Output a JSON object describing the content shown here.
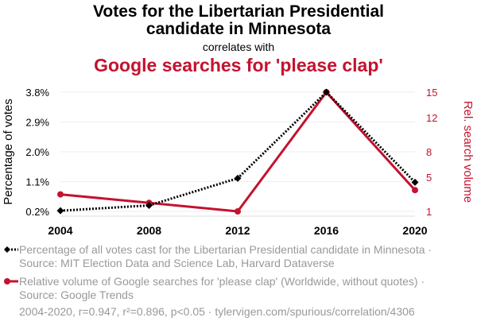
{
  "header": {
    "title_line1": "Votes for the Libertarian Presidential",
    "title_line2": "candidate in Minnesota",
    "connector": "correlates with",
    "title_secondary": "Google searches for 'please clap'"
  },
  "legend": {
    "series1": "Percentage of all votes cast for the Libertarian Presidential candidate in Minnesota · Source: MIT Election Data and Science Lab, Harvard Dataverse",
    "series2": "Relative volume of Google searches for 'please clap' (Worldwide, without quotes) · Source: Google Trends"
  },
  "footer": "2004-2020, r=0.947, r²=0.896, p<0.05 · tylervigen.com/spurious/correlation/4306",
  "colors": {
    "primary": "#000000",
    "secondary": "#c4122f",
    "muted": "#999999",
    "grid": "#eeeeee"
  },
  "chart_data": {
    "type": "line",
    "x": [
      2004,
      2008,
      2012,
      2016,
      2020
    ],
    "xlabel": "",
    "y_left": {
      "label": "Percentage of votes",
      "ticks": [
        "0.2%",
        "1.1%",
        "2.0%",
        "2.9%",
        "3.8%"
      ],
      "tick_values": [
        0.2,
        1.1,
        2.0,
        2.9,
        3.8
      ],
      "ylim": [
        0.2,
        3.8
      ]
    },
    "y_right": {
      "label": "Rel. search volume",
      "ticks": [
        "1",
        "5",
        "8",
        "12",
        "15"
      ],
      "tick_values": [
        1,
        5,
        8,
        12,
        15
      ],
      "ylim": [
        1,
        15
      ]
    },
    "series": [
      {
        "axis": "left",
        "values": [
          0.22,
          0.38,
          1.2,
          3.8,
          1.08
        ],
        "style": "dotted",
        "marker": "diamond",
        "color": "#000000"
      },
      {
        "axis": "right",
        "values": [
          3,
          2,
          1,
          15,
          3.5
        ],
        "style": "solid",
        "marker": "circle",
        "color": "#c4122f"
      }
    ],
    "grid": true
  }
}
